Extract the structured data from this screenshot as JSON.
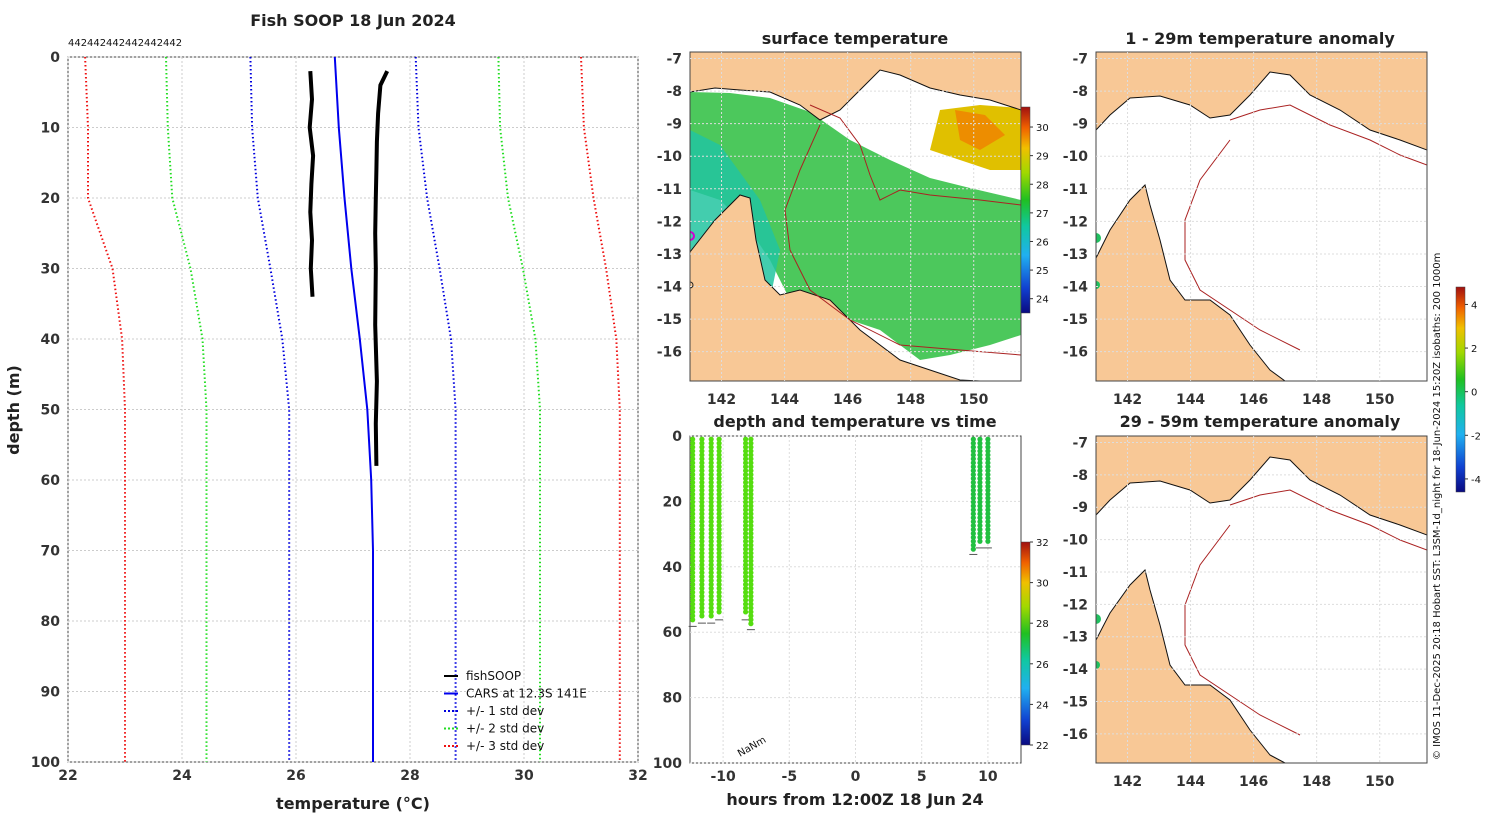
{
  "chart_data": [
    {
      "type": "line",
      "title": "Fish SOOP 18 Jun 2024",
      "xlabel": "temperature (°C)",
      "ylabel": "depth (m)",
      "xlim": [
        22,
        32
      ],
      "ylim": [
        100,
        0
      ],
      "xticks": [
        "22",
        "24",
        "26",
        "28",
        "30",
        "32"
      ],
      "yticks": [
        "0",
        "10",
        "20",
        "30",
        "40",
        "50",
        "60",
        "70",
        "80",
        "90",
        "100"
      ],
      "top_labels": [
        "442",
        "442",
        "442",
        "442",
        "442",
        "442"
      ],
      "series": [
        {
          "name": "fishSOOP",
          "color": "#000000",
          "style": "solid",
          "x": [
            26.25,
            26.28,
            26.24,
            26.3,
            26.27,
            26.25,
            26.28,
            26.26,
            26.29
          ],
          "y": [
            2,
            6,
            10,
            14,
            18,
            22,
            26,
            30,
            34
          ]
        },
        {
          "name": "fishSOOP",
          "color": "#000000",
          "style": "solid",
          "x": [
            27.6,
            27.48,
            27.44,
            27.42,
            27.41,
            27.4,
            27.39,
            27.4,
            27.39,
            27.42,
            27.4,
            27.41
          ],
          "y": [
            2,
            4,
            8,
            12,
            16,
            20,
            25,
            30,
            38,
            46,
            52,
            58
          ]
        },
        {
          "name": "CARS at 12.3S 141E",
          "color": "#0000ee",
          "style": "solid",
          "x": [
            26.68,
            26.75,
            26.85,
            26.97,
            27.12,
            27.25,
            27.32,
            27.35,
            27.35,
            27.35
          ],
          "y": [
            0,
            10,
            20,
            30,
            40,
            50,
            60,
            70,
            80,
            100
          ]
        },
        {
          "name": "+/- 1 std dev",
          "color": "#0000dd",
          "style": "dotted",
          "x": [
            25.2,
            25.23,
            25.33,
            25.55,
            25.76,
            25.88,
            25.88,
            25.88
          ],
          "y": [
            0,
            10,
            20,
            30,
            40,
            50,
            60,
            100
          ]
        },
        {
          "name": "+/- 1 std dev",
          "color": "#0000dd",
          "style": "dotted",
          "x": [
            28.1,
            28.15,
            28.3,
            28.52,
            28.72,
            28.8,
            28.8,
            28.8
          ],
          "y": [
            0,
            10,
            20,
            30,
            40,
            50,
            60,
            100
          ]
        },
        {
          "name": "+/- 2 std dev",
          "color": "#22dd22",
          "style": "dotted",
          "x": [
            23.72,
            23.75,
            23.83,
            24.15,
            24.36,
            24.43,
            24.43,
            24.43
          ],
          "y": [
            0,
            10,
            20,
            30,
            40,
            50,
            60,
            100
          ]
        },
        {
          "name": "+/- 2 std dev",
          "color": "#22dd22",
          "style": "dotted",
          "x": [
            29.55,
            29.58,
            29.72,
            29.98,
            30.2,
            30.28,
            30.28,
            30.28
          ],
          "y": [
            0,
            10,
            20,
            30,
            40,
            50,
            60,
            100
          ]
        },
        {
          "name": "+/- 3 std dev",
          "color": "#ee1111",
          "style": "dotted",
          "x": [
            22.3,
            22.35,
            22.35,
            22.78,
            22.95,
            23.0,
            23.0,
            23.0
          ],
          "y": [
            0,
            10,
            20,
            30,
            40,
            50,
            60,
            100
          ]
        },
        {
          "name": "+/- 3 std dev",
          "color": "#ee1111",
          "style": "dotted",
          "x": [
            31.0,
            31.05,
            31.22,
            31.44,
            31.62,
            31.68,
            31.68,
            31.68
          ],
          "y": [
            0,
            10,
            20,
            30,
            40,
            50,
            60,
            100
          ]
        }
      ],
      "legend": {
        "position": "bottom-right",
        "entries": [
          {
            "label": "fishSOOP",
            "color": "#000000",
            "style": "solid"
          },
          {
            "label": "CARS at 12.3S 141E",
            "color": "#0000ee",
            "style": "solid"
          },
          {
            "label": "+/- 1 std dev",
            "color": "#0000dd",
            "style": "dotted"
          },
          {
            "label": "+/- 2 std dev",
            "color": "#22dd22",
            "style": "dotted"
          },
          {
            "label": "+/- 3 std dev",
            "color": "#ee1111",
            "style": "dotted"
          }
        ]
      }
    },
    {
      "type": "heatmap",
      "title": "surface temperature",
      "xlim": [
        141,
        151.5
      ],
      "ylim": [
        -16.9,
        -6.8
      ],
      "xticks": [
        "142",
        "144",
        "146",
        "148",
        "150"
      ],
      "yticks": [
        "-7",
        "-8",
        "-9",
        "-10",
        "-11",
        "-12",
        "-13",
        "-14",
        "-15",
        "-16"
      ],
      "colorbar": {
        "ticks": [
          "24",
          "25",
          "26",
          "27",
          "28",
          "29",
          "30"
        ],
        "min": 23.5,
        "max": 30.7
      }
    },
    {
      "type": "scatter",
      "title": "depth and temperature vs time",
      "xlabel": "hours from 12:00Z 18 Jun 24",
      "xlim": [
        -12.5,
        12.5
      ],
      "ylim": [
        100,
        0
      ],
      "xticks": [
        "-10",
        "-5",
        "0",
        "5",
        "10"
      ],
      "yticks": [
        "0",
        "20",
        "40",
        "60",
        "80",
        "100"
      ],
      "annotation": "NaNm",
      "colorbar": {
        "ticks": [
          "22",
          "24",
          "26",
          "28",
          "30",
          "32"
        ],
        "min": 22,
        "max": 32
      },
      "casts": [
        {
          "t": -12.3,
          "max_depth": 57
        },
        {
          "t": -11.6,
          "max_depth": 56
        },
        {
          "t": -10.9,
          "max_depth": 56
        },
        {
          "t": -10.3,
          "max_depth": 55
        },
        {
          "t": -8.3,
          "max_depth": 55
        },
        {
          "t": -7.9,
          "max_depth": 58
        },
        {
          "t": 8.9,
          "max_depth": 35
        },
        {
          "t": 9.4,
          "max_depth": 33
        },
        {
          "t": 10.0,
          "max_depth": 33
        }
      ]
    },
    {
      "type": "heatmap",
      "title": "1 - 29m temperature anomaly",
      "xlim": [
        141,
        151.5
      ],
      "ylim": [
        -16.9,
        -6.8
      ],
      "xticks": [
        "142",
        "144",
        "146",
        "148",
        "150"
      ],
      "yticks": [
        "-7",
        "-8",
        "-9",
        "-10",
        "-11",
        "-12",
        "-13",
        "-14",
        "-15",
        "-16"
      ]
    },
    {
      "type": "heatmap",
      "title": "29 - 59m temperature anomaly",
      "xlim": [
        141,
        151.5
      ],
      "ylim": [
        -16.9,
        -6.8
      ],
      "xticks": [
        "142",
        "144",
        "146",
        "148",
        "150"
      ],
      "yticks": [
        "-7",
        "-8",
        "-9",
        "-10",
        "-11",
        "-12",
        "-13",
        "-14",
        "-15",
        "-16"
      ],
      "colorbar": {
        "ticks": [
          "4",
          "2",
          "0",
          "-2",
          "-4"
        ],
        "min": -4.6,
        "max": 4.8
      }
    }
  ],
  "footer": {
    "credit": "© IMOS 11-Dec-2025 20:18 Hobart SST: L3SM-1d_night for 18-Jun-2024 15:20Z isobaths: 200  1000m"
  },
  "colors": {
    "land": "#f8c896",
    "isobath": "#aa2222"
  }
}
